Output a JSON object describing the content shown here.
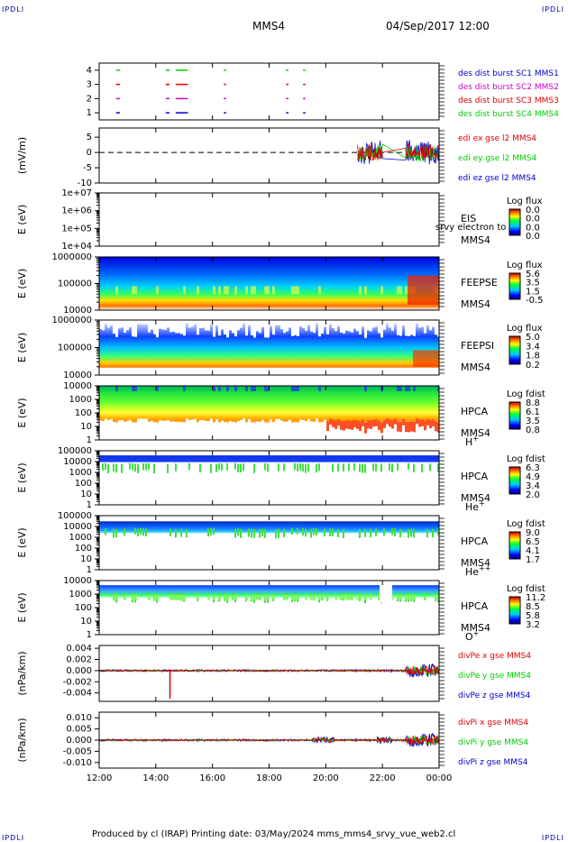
{
  "corners": {
    "tl": "IPDLI",
    "tr": "IPDLI",
    "bl": "IPDLI",
    "br": "IPDLI"
  },
  "header": {
    "spacecraft": "MMS4",
    "datetime": "04/Sep/2017 12:00"
  },
  "footer": {
    "text": "Produced by cl (IRAP)   Printing date: 03/May/2024   mms_mms4_srvy_vue_web2.cl"
  },
  "colors": {
    "red": "#dd0000",
    "green": "#00cc00",
    "blue": "#0000cc",
    "magenta": "#cc00cc",
    "black": "#000000"
  },
  "chart_data": [
    {
      "type": "scatter",
      "id": "burst",
      "ylabel": "",
      "yticks": [
        "1",
        "2",
        "3",
        "4"
      ],
      "ylim": [
        0.5,
        4.5
      ],
      "legend": [
        {
          "text": "des dist burst SC1 MMS1",
          "color": "#0000cc"
        },
        {
          "text": "des dist burst SC2 MMS2",
          "color": "#cc00cc"
        },
        {
          "text": "des dist burst SC3 MMS3",
          "color": "#dd0000"
        },
        {
          "text": "des dist burst SC4 MMS4",
          "color": "#00cc00"
        }
      ],
      "segments": [
        {
          "y": 4,
          "color": "#00cc00",
          "ranges": [
            [
              12.6,
              12.7
            ],
            [
              14.35,
              14.45
            ],
            [
              14.7,
              15.1
            ],
            [
              16.4,
              16.45
            ],
            [
              18.6,
              18.65
            ],
            [
              19.2,
              19.25
            ]
          ]
        },
        {
          "y": 3,
          "color": "#dd0000",
          "ranges": [
            [
              12.6,
              12.7
            ],
            [
              14.35,
              14.45
            ],
            [
              14.7,
              15.1
            ],
            [
              16.4,
              16.45
            ],
            [
              18.6,
              18.65
            ],
            [
              19.2,
              19.25
            ]
          ]
        },
        {
          "y": 2,
          "color": "#cc00cc",
          "ranges": [
            [
              12.6,
              12.7
            ],
            [
              14.35,
              14.45
            ],
            [
              14.7,
              15.1
            ],
            [
              16.4,
              16.45
            ],
            [
              18.6,
              18.65
            ],
            [
              19.2,
              19.25
            ]
          ]
        },
        {
          "y": 1,
          "color": "#0000cc",
          "ranges": [
            [
              12.6,
              12.7
            ],
            [
              14.35,
              14.45
            ],
            [
              14.7,
              15.1
            ],
            [
              16.4,
              16.45
            ],
            [
              18.6,
              18.65
            ],
            [
              19.2,
              19.25
            ]
          ]
        }
      ]
    },
    {
      "type": "line",
      "id": "edi",
      "ylabel": "(mV/m)",
      "yticks": [
        "-10",
        "-5",
        "0",
        "5"
      ],
      "ylim": [
        -10,
        8
      ],
      "legend": [
        {
          "text": "edi ex gse l2 MMS4",
          "color": "#dd0000"
        },
        {
          "text": "edi ey gse l2 MMS4",
          "color": "#00cc00"
        },
        {
          "text": "edi ez gse l2 MMS4",
          "color": "#0000cc"
        }
      ],
      "dashed_zero": true,
      "active_ranges": [
        [
          21.1,
          22.0
        ],
        [
          22.8,
          24.0
        ]
      ]
    },
    {
      "type": "heatmap",
      "id": "eis",
      "ylabel": "E (eV)",
      "yticks": [
        "1e+04",
        "1e+05",
        "1e+06",
        "1e+07"
      ],
      "instrument": "EIS",
      "sc": "MMS4",
      "overlay": "srvy electron to",
      "cb_title": "Log flux",
      "cb_ticks": [
        "0.0",
        "0.0",
        "0.0",
        "0.0"
      ],
      "empty": true
    },
    {
      "type": "heatmap",
      "id": "feepse",
      "ylabel": "E (eV)",
      "yticks": [
        "10000",
        "100000",
        "1000000"
      ],
      "instrument": "FEEPSE",
      "sc": "MMS4",
      "cb_title": "Log flux",
      "cb_ticks": [
        "5.6",
        "3.5",
        "1.5",
        "-0.5"
      ]
    },
    {
      "type": "heatmap",
      "id": "feepsi",
      "ylabel": "E (eV)",
      "yticks": [
        "10000",
        "100000",
        "1000000"
      ],
      "instrument": "FEEPSI",
      "sc": "MMS4",
      "cb_title": "Log flux",
      "cb_ticks": [
        "5.0",
        "3.4",
        "1.8",
        "0.2"
      ]
    },
    {
      "type": "heatmap",
      "id": "hpca_h",
      "ylabel": "E (eV)",
      "yticks": [
        "1",
        "10",
        "100",
        "1000",
        "10000"
      ],
      "instrument": "HPCA",
      "sc": "MMS4",
      "species": "H",
      "charge": "+",
      "cb_title": "Log fdist",
      "cb_ticks": [
        "8.8",
        "6.1",
        "3.5",
        "0.8"
      ]
    },
    {
      "type": "heatmap",
      "id": "hpca_he",
      "ylabel": "E (eV)",
      "yticks": [
        "1",
        "10",
        "100",
        "1000",
        "10000",
        "100000"
      ],
      "instrument": "HPCA",
      "sc": "MMS4",
      "species": "He",
      "charge": "+",
      "cb_title": "Log fdist",
      "cb_ticks": [
        "6.3",
        "4.9",
        "3.4",
        "2.0"
      ]
    },
    {
      "type": "heatmap",
      "id": "hpca_hepp",
      "ylabel": "E (eV)",
      "yticks": [
        "1",
        "10",
        "100",
        "1000",
        "10000",
        "100000"
      ],
      "instrument": "HPCA",
      "sc": "MMS4",
      "species": "He",
      "charge": "++",
      "cb_title": "Log fdist",
      "cb_ticks": [
        "9.0",
        "6.5",
        "4.1",
        "1.7"
      ]
    },
    {
      "type": "heatmap",
      "id": "hpca_o",
      "ylabel": "E (eV)",
      "yticks": [
        "1",
        "10",
        "100",
        "1000",
        "10000"
      ],
      "instrument": "HPCA",
      "sc": "MMS4",
      "species": "O",
      "charge": "+",
      "cb_title": "Log fdist",
      "cb_ticks": [
        "11.2",
        "8.5",
        "5.8",
        "3.2"
      ]
    },
    {
      "type": "line",
      "id": "divpe",
      "ylabel": "(nPa/km)",
      "yticks": [
        "-0.004",
        "-0.002",
        "0.000",
        "0.002",
        "0.004"
      ],
      "ylim": [
        -0.0055,
        0.0045
      ],
      "legend": [
        {
          "text": "divPe x gse MMS4",
          "color": "#dd0000"
        },
        {
          "text": "divPe y gse MMS4",
          "color": "#00cc00"
        },
        {
          "text": "divPe z gse MMS4",
          "color": "#0000cc"
        }
      ],
      "dashed_zero": true
    },
    {
      "type": "line",
      "id": "divpi",
      "ylabel": "(nPa/km)",
      "yticks": [
        "-0.010",
        "-0.005",
        "0.000",
        "0.005",
        "0.010"
      ],
      "ylim": [
        -0.0125,
        0.0125
      ],
      "legend": [
        {
          "text": "divPi x gse MMS4",
          "color": "#dd0000"
        },
        {
          "text": "divPi y gse MMS4",
          "color": "#00cc00"
        },
        {
          "text": "divPi z gse MMS4",
          "color": "#0000cc"
        }
      ],
      "dashed_zero": true
    }
  ],
  "xaxis": {
    "ticks": [
      "12:00",
      "14:00",
      "16:00",
      "18:00",
      "20:00",
      "22:00",
      "00:00"
    ],
    "range_hours": [
      12,
      24
    ]
  }
}
